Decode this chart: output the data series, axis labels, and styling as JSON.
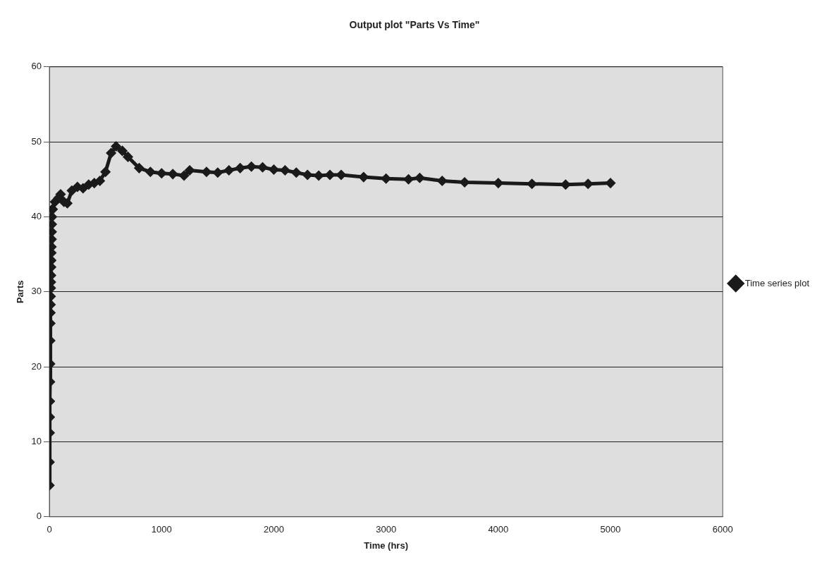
{
  "chart_data": {
    "type": "line",
    "title": "Output plot \"Parts Vs Time\"",
    "xlabel": "Time (hrs)",
    "ylabel": "Parts",
    "x": [
      1,
      2,
      3,
      4,
      5,
      6,
      7,
      8,
      9,
      10,
      11,
      12,
      13,
      14,
      15,
      16,
      17,
      18,
      19,
      20,
      21,
      22,
      23,
      24,
      30,
      50,
      80,
      100,
      130,
      160,
      200,
      250,
      300,
      350,
      400,
      450,
      500,
      550,
      594,
      650,
      700,
      800,
      900,
      1000,
      1100,
      1200,
      1250,
      1400,
      1500,
      1600,
      1700,
      1800,
      1900,
      2000,
      2100,
      2200,
      2300,
      2400,
      2500,
      2600,
      2800,
      3000,
      3200,
      3300,
      3500,
      3700,
      4000,
      4300,
      4600,
      4800,
      5000
    ],
    "series": [
      {
        "name": "Time series plot",
        "color": "#1a1a1a",
        "values": [
          4.2,
          7.3,
          11.2,
          13.3,
          15.4,
          18,
          20.4,
          23.5,
          25.8,
          27.2,
          28.3,
          29.4,
          30.5,
          31.3,
          32.2,
          33.3,
          34.2,
          35.2,
          36,
          37,
          38,
          39,
          40,
          41,
          41,
          42,
          42.5,
          43,
          42,
          41.8,
          43.5,
          44,
          43.8,
          44.3,
          44.5,
          44.8,
          46,
          48.5,
          49.4,
          48.8,
          48,
          46.5,
          46,
          45.8,
          45.7,
          45.5,
          46.2,
          46,
          45.9,
          46.2,
          46.5,
          46.7,
          46.6,
          46.3,
          46.2,
          45.9,
          45.6,
          45.5,
          45.6,
          45.6,
          45.3,
          45.1,
          45,
          45.2,
          44.8,
          44.6,
          44.5,
          44.4,
          44.3,
          44.4,
          44.5
        ]
      }
    ],
    "xlim": [
      0,
      6000
    ],
    "xticks": [
      0,
      1000,
      2000,
      3000,
      4000,
      5000,
      6000
    ],
    "ylim": [
      0,
      60
    ],
    "yticks": [
      0,
      10,
      20,
      30,
      40,
      50,
      60
    ],
    "grid": "y",
    "legend": "right",
    "marker": "diamond",
    "line_style": "solid"
  }
}
